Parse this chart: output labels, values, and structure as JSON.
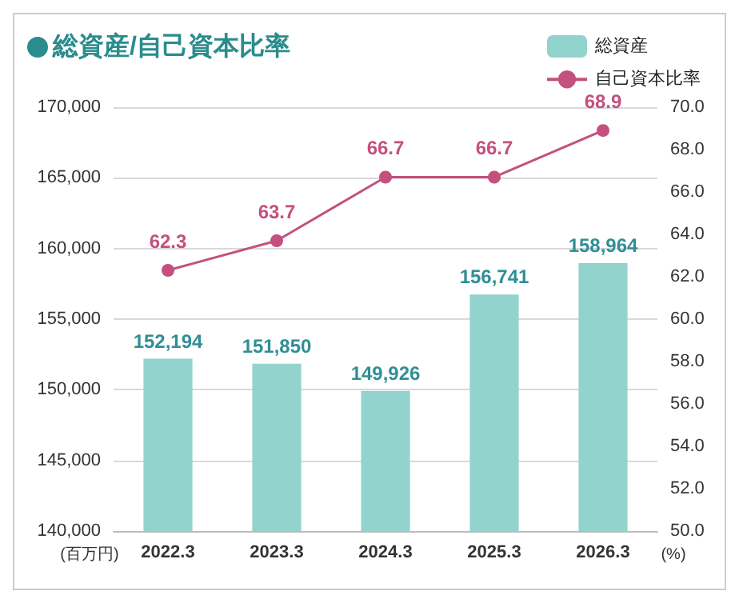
{
  "chart_data": {
    "type": "bar",
    "title": "総資産/自己資本比率",
    "categories": [
      "2022.3",
      "2023.3",
      "2024.3",
      "2025.3",
      "2026.3"
    ],
    "series": [
      {
        "name": "総資産",
        "color": "#93d3cd",
        "values": [
          152194,
          151850,
          149926,
          156741,
          158964
        ],
        "value_labels": [
          "152,194",
          "151,850",
          "149,926",
          "156,741",
          "158,964"
        ]
      },
      {
        "name": "自己資本比率",
        "type": "line",
        "axis": "y2",
        "color": "#c4507f",
        "values": [
          62.3,
          63.7,
          66.7,
          66.7,
          68.9
        ],
        "value_labels": [
          "62.3",
          "63.7",
          "66.7",
          "66.7",
          "68.9"
        ]
      }
    ],
    "ylabel": "(百万円)",
    "y2label": "(%)",
    "ylim": [
      140000,
      170000
    ],
    "yticks": [
      {
        "value": 140000,
        "label": "140,000"
      },
      {
        "value": 145000,
        "label": "145,000"
      },
      {
        "value": 150000,
        "label": "150,000"
      },
      {
        "value": 155000,
        "label": "155,000"
      },
      {
        "value": 160000,
        "label": "160,000"
      },
      {
        "value": 165000,
        "label": "165,000"
      },
      {
        "value": 170000,
        "label": "170,000"
      }
    ],
    "y2lim": [
      50,
      70
    ],
    "y2ticks": [
      {
        "value": 50,
        "label": "50.0"
      },
      {
        "value": 52,
        "label": "52.0"
      },
      {
        "value": 54,
        "label": "54.0"
      },
      {
        "value": 56,
        "label": "56.0"
      },
      {
        "value": 58,
        "label": "58.0"
      },
      {
        "value": 60,
        "label": "60.0"
      },
      {
        "value": 62,
        "label": "62.0"
      },
      {
        "value": 64,
        "label": "64.0"
      },
      {
        "value": 66,
        "label": "66.0"
      },
      {
        "value": 68,
        "label": "68.0"
      },
      {
        "value": 70,
        "label": "70.0"
      }
    ],
    "grid": "y",
    "legend": "top right",
    "marker": "circle",
    "line_style": "solid"
  }
}
